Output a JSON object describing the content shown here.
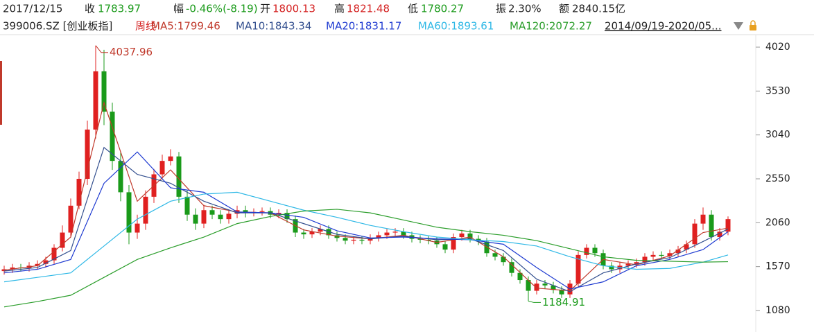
{
  "chart_data": {
    "type": "candlestick",
    "quote": {
      "date": "2017/12/15",
      "items": [
        {
          "label": "收",
          "value": "1783.97",
          "color": "#1a9a1a"
        },
        {
          "label": "幅",
          "value": "-0.46%(-8.19)",
          "color": "#1a9a1a"
        },
        {
          "label": "开",
          "value": "1800.13",
          "color": "#d42020"
        },
        {
          "label": "高",
          "value": "1821.48",
          "color": "#d42020"
        },
        {
          "label": "低",
          "value": "1780.27",
          "color": "#1a9a1a"
        },
        {
          "label": "振",
          "value": "2.30%",
          "color": "#222222"
        },
        {
          "label": "额",
          "value": "2840.15亿",
          "color": "#222222"
        }
      ]
    },
    "symbol": "399006.SZ [创业板指]",
    "period": "周线",
    "range": "2014/09/19-2020/05...",
    "up_color": "#e02020",
    "down_color": "#1a9a1a",
    "open": [
      1520,
      1540,
      1560,
      1555,
      1580,
      1600,
      1640,
      1780,
      1950,
      2250,
      2550,
      3100,
      3750,
      3300,
      2750,
      2400,
      1950,
      2050,
      2350,
      2600,
      2750,
      2800,
      2350,
      2150,
      2050,
      2200,
      2150,
      2100,
      2160,
      2200,
      2170,
      2180,
      2190,
      2150,
      2170,
      2100,
      1950,
      1930,
      1960,
      1990,
      1920,
      1890,
      1860,
      1870,
      1860,
      1890,
      1920,
      1950,
      1960,
      1920,
      1880,
      1870,
      1860,
      1820,
      1760,
      1900,
      1940,
      1880,
      1850,
      1720,
      1680,
      1620,
      1500,
      1420,
      1300,
      1380,
      1360,
      1310,
      1260,
      1380,
      1700,
      1780,
      1720,
      1580,
      1540,
      1580,
      1600,
      1620,
      1680,
      1700,
      1690,
      1720,
      1760,
      1820,
      2050,
      2150,
      1900,
      1960
    ],
    "high": [
      1580,
      1600,
      1600,
      1620,
      1640,
      1680,
      1820,
      2030,
      2330,
      2630,
      3200,
      4037.96,
      3990,
      3400,
      2850,
      2480,
      2150,
      2420,
      2660,
      2820,
      2880,
      2850,
      2420,
      2220,
      2260,
      2250,
      2200,
      2210,
      2250,
      2250,
      2220,
      2230,
      2230,
      2210,
      2210,
      2140,
      1990,
      2000,
      2030,
      2030,
      1960,
      1930,
      1910,
      1910,
      1930,
      1960,
      1990,
      2000,
      2000,
      1960,
      1920,
      1910,
      1900,
      1860,
      1940,
      1980,
      1980,
      1920,
      1890,
      1760,
      1720,
      1660,
      1540,
      1460,
      1420,
      1420,
      1400,
      1350,
      1420,
      1740,
      1820,
      1820,
      1760,
      1620,
      1620,
      1640,
      1660,
      1720,
      1740,
      1740,
      1760,
      1800,
      1860,
      2100,
      2230,
      2200,
      2000,
      2130
    ],
    "low": [
      1480,
      1500,
      1515,
      1515,
      1540,
      1560,
      1600,
      1740,
      1910,
      2210,
      2480,
      3000,
      3150,
      2650,
      2300,
      1820,
      1880,
      1980,
      2280,
      2540,
      2700,
      2280,
      2080,
      1980,
      2000,
      2100,
      2050,
      2050,
      2110,
      2120,
      2130,
      2140,
      2110,
      2110,
      2060,
      1900,
      1880,
      1890,
      1920,
      1880,
      1850,
      1820,
      1820,
      1820,
      1820,
      1850,
      1880,
      1910,
      1880,
      1840,
      1830,
      1820,
      1780,
      1720,
      1720,
      1860,
      1840,
      1810,
      1680,
      1640,
      1580,
      1460,
      1380,
      1184.91,
      1260,
      1320,
      1270,
      1220,
      1220,
      1340,
      1660,
      1680,
      1540,
      1500,
      1500,
      1540,
      1560,
      1580,
      1640,
      1650,
      1650,
      1680,
      1720,
      1780,
      1980,
      1860,
      1860,
      1920
    ],
    "close": [
      1540,
      1560,
      1555,
      1580,
      1600,
      1640,
      1780,
      1950,
      2250,
      2550,
      3100,
      3750,
      3300,
      2750,
      2400,
      1950,
      2050,
      2350,
      2600,
      2750,
      2800,
      2350,
      2150,
      2050,
      2200,
      2150,
      2100,
      2160,
      2200,
      2170,
      2180,
      2190,
      2150,
      2170,
      2100,
      1950,
      1930,
      1960,
      1990,
      1920,
      1890,
      1860,
      1870,
      1860,
      1890,
      1920,
      1950,
      1960,
      1920,
      1880,
      1870,
      1860,
      1820,
      1760,
      1900,
      1940,
      1880,
      1850,
      1720,
      1680,
      1620,
      1500,
      1420,
      1300,
      1380,
      1360,
      1310,
      1260,
      1380,
      1700,
      1780,
      1720,
      1580,
      1540,
      1580,
      1600,
      1620,
      1680,
      1700,
      1690,
      1720,
      1760,
      1820,
      2050,
      2150,
      1900,
      1960,
      2100
    ],
    "lines": [
      {
        "name": "MA5:1799.46",
        "color": "#c0392b",
        "x": [
          0,
          4,
          8,
          12,
          16,
          20,
          24,
          28,
          32,
          36,
          40,
          44,
          48,
          52,
          56,
          60,
          64,
          68,
          72,
          76,
          80,
          84,
          87
        ],
        "values": [
          1530,
          1580,
          1900,
          3400,
          2300,
          2650,
          2250,
          2180,
          2170,
          1980,
          1910,
          1880,
          1920,
          1840,
          1900,
          1680,
          1330,
          1300,
          1650,
          1590,
          1690,
          1950,
          2000
        ]
      },
      {
        "name": "MA10:1843.34",
        "color": "#34508f",
        "x": [
          0,
          4,
          8,
          12,
          16,
          20,
          24,
          28,
          32,
          36,
          40,
          44,
          48,
          52,
          56,
          60,
          64,
          68,
          72,
          76,
          80,
          84,
          87
        ],
        "values": [
          1520,
          1560,
          1750,
          2900,
          2600,
          2500,
          2300,
          2170,
          2170,
          2050,
          1930,
          1880,
          1910,
          1870,
          1880,
          1750,
          1430,
          1290,
          1500,
          1600,
          1670,
          1850,
          1990
        ]
      },
      {
        "name": "MA20:1831.17",
        "color": "#1f3bd1",
        "x": [
          0,
          4,
          8,
          12,
          16,
          20,
          24,
          28,
          32,
          36,
          40,
          44,
          48,
          52,
          56,
          60,
          64,
          68,
          72,
          76,
          80,
          84,
          87
        ],
        "values": [
          1500,
          1540,
          1650,
          2500,
          2850,
          2450,
          2400,
          2180,
          2170,
          2120,
          1970,
          1890,
          1900,
          1880,
          1870,
          1820,
          1560,
          1320,
          1400,
          1580,
          1650,
          1760,
          1960
        ]
      },
      {
        "name": "MA60:1893.61",
        "color": "#2eb8e6",
        "x": [
          0,
          4,
          8,
          12,
          16,
          20,
          24,
          28,
          32,
          36,
          40,
          44,
          48,
          52,
          56,
          60,
          64,
          68,
          72,
          76,
          80,
          84,
          87
        ],
        "values": [
          1400,
          1450,
          1500,
          1800,
          2100,
          2300,
          2380,
          2400,
          2300,
          2200,
          2120,
          2030,
          1960,
          1900,
          1870,
          1850,
          1800,
          1680,
          1580,
          1540,
          1550,
          1620,
          1700
        ]
      },
      {
        "name": "MA120:2072.27",
        "color": "#2a9d2a",
        "x": [
          0,
          4,
          8,
          12,
          16,
          20,
          24,
          28,
          32,
          36,
          40,
          44,
          48,
          52,
          56,
          60,
          64,
          68,
          72,
          76,
          80,
          84,
          87
        ],
        "values": [
          1120,
          1180,
          1250,
          1450,
          1650,
          1780,
          1900,
          2050,
          2130,
          2190,
          2210,
          2170,
          2090,
          2010,
          1960,
          1920,
          1860,
          1770,
          1680,
          1640,
          1630,
          1620,
          1625
        ]
      }
    ],
    "annotations": [
      {
        "value": 4037.96
      },
      {
        "value": 1184.91
      }
    ],
    "ylim": [
      840,
      4144
    ],
    "yticks": [
      4020,
      3530,
      3040,
      2550,
      2060,
      1570,
      1080
    ]
  }
}
